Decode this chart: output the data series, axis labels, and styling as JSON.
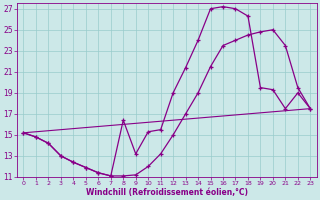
{
  "bg_color": "#cce8e8",
  "line_color": "#880088",
  "grid_color": "#99cccc",
  "xlabel": "Windchill (Refroidissement éolien,°C)",
  "xlim": [
    -0.5,
    23.5
  ],
  "ylim": [
    11,
    27.5
  ],
  "xticks": [
    0,
    1,
    2,
    3,
    4,
    5,
    6,
    7,
    8,
    9,
    10,
    11,
    12,
    13,
    14,
    15,
    16,
    17,
    18,
    19,
    20,
    21,
    22,
    23
  ],
  "yticks": [
    11,
    13,
    15,
    17,
    19,
    21,
    23,
    25,
    27
  ],
  "line1_x": [
    0,
    1,
    2,
    3,
    4,
    5,
    6,
    7,
    8,
    9,
    10,
    11,
    12,
    13,
    14,
    15,
    16,
    17,
    18,
    19,
    20,
    21,
    22,
    23
  ],
  "line1_y": [
    15.2,
    14.8,
    14.2,
    13.0,
    12.4,
    11.9,
    11.4,
    11.1,
    16.4,
    13.2,
    15.3,
    15.5,
    19.0,
    21.4,
    24.0,
    27.0,
    27.2,
    27.0,
    26.3,
    19.5,
    19.3,
    17.5,
    19.0,
    17.5
  ],
  "line2_x": [
    0,
    1,
    2,
    3,
    4,
    5,
    6,
    7,
    8,
    9,
    10,
    11,
    12,
    13,
    14,
    15,
    16,
    17,
    18,
    19,
    20,
    21,
    22,
    23
  ],
  "line2_y": [
    15.2,
    14.8,
    14.2,
    13.0,
    12.4,
    11.9,
    11.4,
    11.1,
    11.1,
    11.2,
    12.0,
    13.2,
    15.0,
    17.0,
    19.0,
    21.5,
    23.5,
    24.0,
    24.5,
    24.8,
    25.0,
    23.5,
    19.5,
    17.5
  ],
  "line3_x": [
    0,
    23
  ],
  "line3_y": [
    15.2,
    17.5
  ]
}
